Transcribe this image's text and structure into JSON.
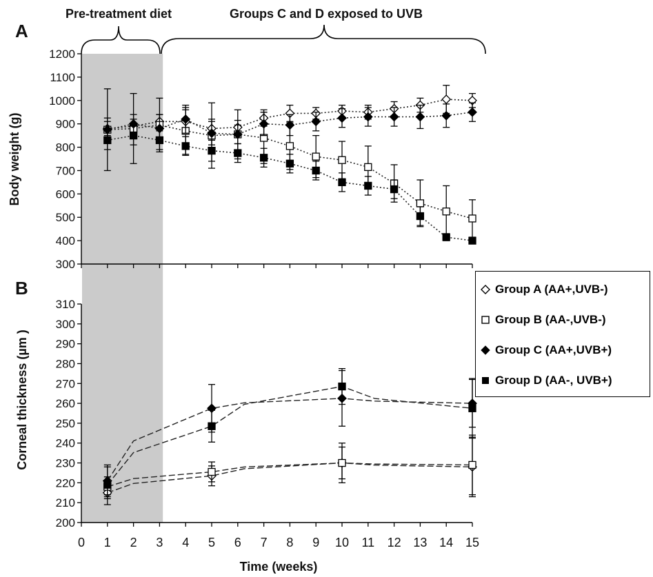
{
  "annotations": {
    "pre_treatment": "Pre-treatment diet",
    "uvb_exposure": "Groups C and D exposed to UVB",
    "x_label": "Time (weeks)",
    "shaded_region_weeks": [
      0,
      3.1
    ]
  },
  "legend": [
    {
      "label": "Group A (AA+,UVB-)",
      "marker": "open-diamond"
    },
    {
      "label": "Group B (AA-,UVB-)",
      "marker": "open-square"
    },
    {
      "label": "Group C (AA+,UVB+)",
      "marker": "filled-diamond"
    },
    {
      "label": "Group D (AA-, UVB+)",
      "marker": "filled-square"
    }
  ],
  "chart_data": [
    {
      "type": "line",
      "panel": "A",
      "ylabel": "Body weight (g)",
      "xlabel": "Time (weeks)",
      "xlim": [
        0,
        15
      ],
      "ylim": [
        300,
        1200
      ],
      "xticks": [
        0,
        1,
        2,
        3,
        4,
        5,
        6,
        7,
        8,
        9,
        10,
        11,
        12,
        13,
        14,
        15
      ],
      "yticks": [
        300,
        400,
        500,
        600,
        700,
        800,
        900,
        1000,
        1100,
        1200
      ],
      "line_style": "dotted",
      "series": [
        {
          "name": "Group A (AA+,UVB-)",
          "marker": "open-diamond",
          "x": [
            1,
            2,
            3,
            4,
            5,
            6,
            7,
            8,
            9,
            10,
            11,
            12,
            13,
            14,
            15
          ],
          "y": [
            880,
            890,
            910,
            910,
            880,
            885,
            925,
            945,
            945,
            955,
            950,
            965,
            980,
            1005,
            1000
          ],
          "err": [
            30,
            30,
            30,
            50,
            40,
            30,
            35,
            35,
            25,
            25,
            30,
            30,
            30,
            60,
            30
          ]
        },
        {
          "name": "Group B (AA-,UVB-)",
          "marker": "open-square",
          "x": [
            1,
            2,
            3,
            4,
            5,
            6,
            7,
            8,
            9,
            10,
            11,
            12,
            13,
            14,
            15
          ],
          "y": [
            875,
            880,
            895,
            870,
            850,
            855,
            840,
            805,
            760,
            745,
            715,
            645,
            560,
            525,
            495
          ],
          "err": [
            175,
            150,
            115,
            100,
            140,
            105,
            110,
            100,
            90,
            80,
            90,
            80,
            100,
            110,
            80
          ]
        },
        {
          "name": "Group C (AA+,UVB+)",
          "marker": "filled-diamond",
          "x": [
            1,
            2,
            3,
            4,
            5,
            6,
            7,
            8,
            9,
            10,
            11,
            12,
            13,
            14,
            15
          ],
          "y": [
            875,
            900,
            880,
            920,
            860,
            855,
            900,
            895,
            910,
            925,
            930,
            930,
            930,
            935,
            950
          ],
          "err": [
            50,
            40,
            60,
            60,
            50,
            40,
            50,
            45,
            40,
            40,
            40,
            40,
            50,
            50,
            40
          ]
        },
        {
          "name": "Group D (AA-, UVB+)",
          "marker": "filled-square",
          "x": [
            1,
            2,
            3,
            4,
            5,
            6,
            7,
            8,
            9,
            10,
            11,
            12,
            13,
            14,
            15
          ],
          "y": [
            830,
            850,
            830,
            805,
            785,
            775,
            755,
            730,
            700,
            650,
            635,
            620,
            505,
            415,
            400
          ],
          "err": [
            40,
            40,
            40,
            40,
            45,
            40,
            40,
            40,
            40,
            40,
            40,
            40,
            40,
            15,
            10
          ]
        }
      ]
    },
    {
      "type": "line",
      "panel": "B",
      "ylabel": "Corneal thickness (µm )",
      "xlabel": "Time (weeks)",
      "xlim": [
        0,
        15
      ],
      "ylim": [
        200,
        310
      ],
      "xticks": [
        0,
        1,
        2,
        3,
        4,
        5,
        6,
        7,
        8,
        9,
        10,
        11,
        12,
        13,
        14,
        15
      ],
      "yticks": [
        200,
        210,
        220,
        230,
        240,
        250,
        260,
        270,
        280,
        290,
        300,
        310
      ],
      "line_style": "dashed",
      "series": [
        {
          "name": "Group A (AA+,UVB-)",
          "marker": "open-diamond",
          "x": [
            1,
            5,
            10,
            15
          ],
          "y": [
            215,
            223.5,
            230,
            228
          ],
          "err": [
            3,
            5,
            8,
            15
          ]
        },
        {
          "name": "Group B (AA-,UVB-)",
          "marker": "open-square",
          "x": [
            1,
            5,
            10,
            15
          ],
          "y": [
            218,
            225.5,
            230,
            229
          ],
          "err": [
            5,
            5,
            10,
            15
          ]
        },
        {
          "name": "Group C (AA+,UVB+)",
          "marker": "filled-diamond",
          "x": [
            1,
            5,
            10,
            15
          ],
          "y": [
            221,
            257.5,
            262.5,
            260
          ],
          "err": [
            7,
            12,
            14,
            12
          ]
        },
        {
          "name": "Group D (AA-, UVB+)",
          "marker": "filled-square",
          "x": [
            1,
            5,
            10,
            15
          ],
          "y": [
            219,
            248.5,
            268.5,
            257.5
          ],
          "err": [
            10,
            8,
            9,
            15
          ]
        }
      ]
    }
  ]
}
